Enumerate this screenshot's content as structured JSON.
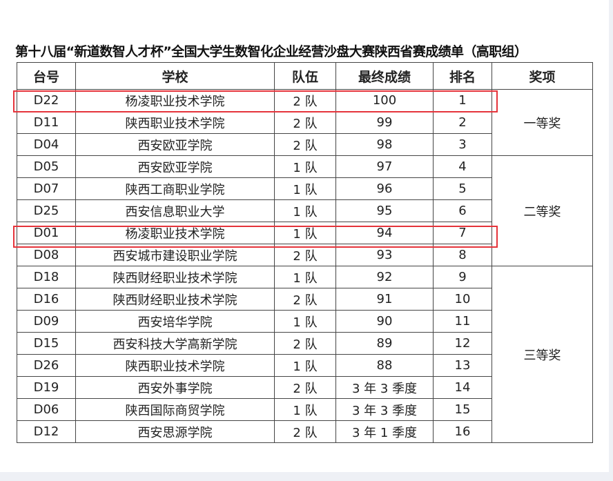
{
  "title": "第十八届“新道数智人才杯”全国大学生数智化企业经营沙盘大赛陕西省赛成绩单（高职组）",
  "headers": [
    "台号",
    "学校",
    "队伍",
    "最终成绩",
    "排名",
    "奖项"
  ],
  "rows": [
    [
      "D22",
      "杨凌职业技术学院",
      "2 队",
      "100",
      "1"
    ],
    [
      "D11",
      "陕西职业技术学院",
      "2 队",
      "99",
      "2"
    ],
    [
      "D04",
      "西安欧亚学院",
      "2 队",
      "98",
      "3"
    ],
    [
      "D05",
      "西安欧亚学院",
      "1 队",
      "97",
      "4"
    ],
    [
      "D07",
      "陕西工商职业学院",
      "1 队",
      "96",
      "5"
    ],
    [
      "D25",
      "西安信息职业大学",
      "1 队",
      "95",
      "6"
    ],
    [
      "D01",
      "杨凌职业技术学院",
      "1 队",
      "94",
      "7"
    ],
    [
      "D08",
      "西安城市建设职业学院",
      "2 队",
      "93",
      "8"
    ],
    [
      "D18",
      "陕西财经职业技术学院",
      "1 队",
      "92",
      "9"
    ],
    [
      "D16",
      "陕西财经职业技术学院",
      "2 队",
      "91",
      "10"
    ],
    [
      "D09",
      "西安培华学院",
      "1 队",
      "90",
      "11"
    ],
    [
      "D15",
      "西安科技大学高新学院",
      "2 队",
      "89",
      "12"
    ],
    [
      "D26",
      "陕西职业技术学院",
      "1 队",
      "88",
      "13"
    ],
    [
      "D19",
      "西安外事学院",
      "2 队",
      "3 年 3 季度",
      "14"
    ],
    [
      "D06",
      "陕西国际商贸学院",
      "1 队",
      "3 年 3 季度",
      "15"
    ],
    [
      "D12",
      "西安思源学院",
      "2 队",
      "3 年 1 季度",
      "16"
    ]
  ],
  "awards": [
    {
      "label": "一等奖",
      "span": 3
    },
    {
      "label": "二等奖",
      "span": 5
    },
    {
      "label": "三等奖",
      "span": 8
    }
  ],
  "highlight_color": "#e5333a"
}
